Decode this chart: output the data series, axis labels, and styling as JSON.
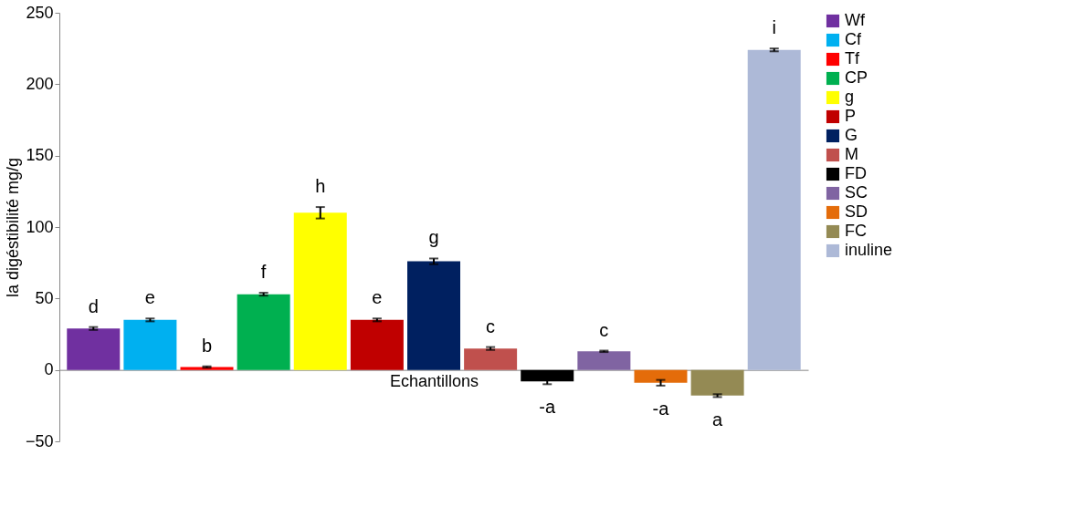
{
  "chart_data": {
    "type": "bar",
    "xlabel": "Echantillons",
    "ylabel": "la digéstibilité mg/g",
    "categories": [
      null,
      null,
      null,
      null,
      null,
      null,
      null,
      null,
      null,
      null,
      null,
      null,
      null
    ],
    "series": [
      {
        "name": "Wf",
        "color": "#7030a0",
        "values": [
          29,
          null,
          null,
          null,
          null,
          null,
          null,
          null,
          null,
          null,
          null,
          null,
          null
        ],
        "errors": [
          1,
          null,
          null,
          null,
          null,
          null,
          null,
          null,
          null,
          null,
          null,
          null,
          null
        ]
      },
      {
        "name": "Cf",
        "color": "#00b0f0",
        "values": [
          null,
          35,
          null,
          null,
          null,
          null,
          null,
          null,
          null,
          null,
          null,
          null,
          null
        ],
        "errors": [
          null,
          1,
          null,
          null,
          null,
          null,
          null,
          null,
          null,
          null,
          null,
          null,
          null
        ]
      },
      {
        "name": "Tf",
        "color": "#ff0000",
        "values": [
          null,
          null,
          2,
          null,
          null,
          null,
          null,
          null,
          null,
          null,
          null,
          null,
          null
        ],
        "errors": [
          null,
          null,
          0.5,
          null,
          null,
          null,
          null,
          null,
          null,
          null,
          null,
          null,
          null
        ]
      },
      {
        "name": "CP",
        "color": "#00b050",
        "values": [
          null,
          null,
          null,
          53,
          null,
          null,
          null,
          null,
          null,
          null,
          null,
          null,
          null
        ],
        "errors": [
          null,
          null,
          null,
          1,
          null,
          null,
          null,
          null,
          null,
          null,
          null,
          null,
          null
        ]
      },
      {
        "name": "g",
        "color": "#ffff00",
        "values": [
          null,
          null,
          null,
          null,
          110,
          null,
          null,
          null,
          null,
          null,
          null,
          null,
          null
        ],
        "errors": [
          null,
          null,
          null,
          null,
          4,
          null,
          null,
          null,
          null,
          null,
          null,
          null,
          null
        ]
      },
      {
        "name": "P",
        "color": "#c00000",
        "values": [
          null,
          null,
          null,
          null,
          null,
          35,
          null,
          null,
          null,
          null,
          null,
          null,
          null
        ],
        "errors": [
          null,
          null,
          null,
          null,
          null,
          1,
          null,
          null,
          null,
          null,
          null,
          null,
          null
        ]
      },
      {
        "name": "G",
        "color": "#002060",
        "values": [
          null,
          null,
          null,
          null,
          null,
          null,
          76,
          null,
          null,
          null,
          null,
          null,
          null
        ],
        "errors": [
          null,
          null,
          null,
          null,
          null,
          null,
          2,
          null,
          null,
          null,
          null,
          null,
          null
        ]
      },
      {
        "name": "M",
        "color": "#c0504d",
        "values": [
          null,
          null,
          null,
          null,
          null,
          null,
          null,
          15,
          null,
          null,
          null,
          null,
          null
        ],
        "errors": [
          null,
          null,
          null,
          null,
          null,
          null,
          null,
          1,
          null,
          null,
          null,
          null,
          null
        ]
      },
      {
        "name": "FD",
        "color": "#000000",
        "values": [
          null,
          null,
          null,
          null,
          null,
          null,
          null,
          null,
          -8,
          null,
          null,
          null,
          null
        ],
        "errors": [
          null,
          null,
          null,
          null,
          null,
          null,
          null,
          null,
          2,
          null,
          null,
          null,
          null
        ]
      },
      {
        "name": "SC",
        "color": "#8064a2",
        "values": [
          null,
          null,
          null,
          null,
          null,
          null,
          null,
          null,
          null,
          13,
          null,
          null,
          null
        ],
        "errors": [
          null,
          null,
          null,
          null,
          null,
          null,
          null,
          null,
          null,
          0.5,
          null,
          null,
          null
        ]
      },
      {
        "name": "SD",
        "color": "#e46c0a",
        "values": [
          null,
          null,
          null,
          null,
          null,
          null,
          null,
          null,
          null,
          null,
          -9,
          null,
          null
        ],
        "errors": [
          null,
          null,
          null,
          null,
          null,
          null,
          null,
          null,
          null,
          null,
          2,
          null,
          null
        ]
      },
      {
        "name": "FC",
        "color": "#948a54",
        "values": [
          null,
          null,
          null,
          null,
          null,
          null,
          null,
          null,
          null,
          null,
          null,
          -18,
          null
        ],
        "errors": [
          null,
          null,
          null,
          null,
          null,
          null,
          null,
          null,
          null,
          null,
          null,
          1,
          null
        ]
      },
      {
        "name": "inuline",
        "color": "#adb9d7",
        "values": [
          null,
          null,
          null,
          null,
          null,
          null,
          null,
          null,
          null,
          null,
          null,
          null,
          224
        ],
        "errors": [
          null,
          null,
          null,
          null,
          null,
          null,
          null,
          null,
          null,
          null,
          null,
          null,
          1
        ]
      }
    ],
    "ylim": [
      -50,
      250
    ],
    "yticks": [
      -50,
      0,
      50,
      100,
      150,
      200,
      250
    ],
    "tick_labels": "y",
    "legend": "right",
    "annotations": [
      "d",
      "e",
      "b",
      "f",
      "h",
      "e",
      "g",
      "c",
      "-a",
      "c",
      "-a",
      "a",
      "i"
    ]
  }
}
